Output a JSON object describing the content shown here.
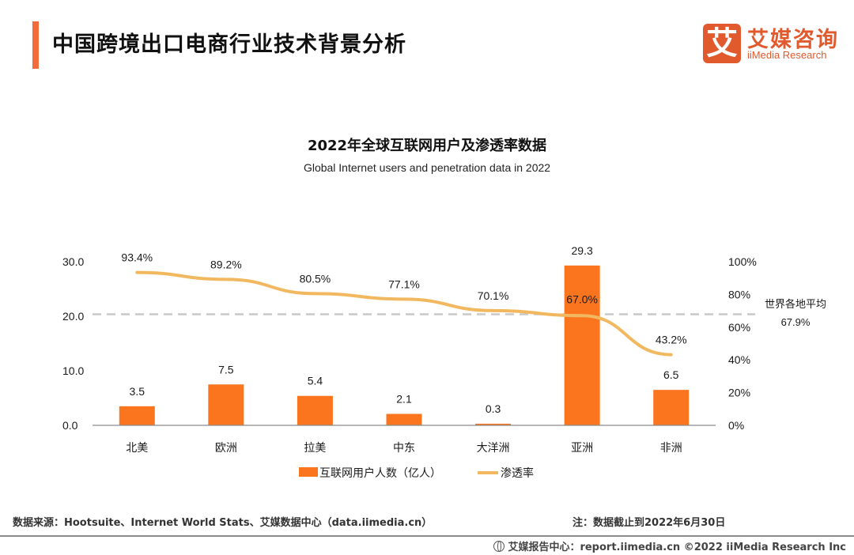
{
  "header": {
    "title": "中国跨境出口电商行业技术背景分析",
    "logo": {
      "mark": "艾",
      "name_cn": "艾媒咨询",
      "name_en": "iiMedia Research"
    }
  },
  "colors": {
    "accent": "#f26b3a",
    "bar": "#fa751e",
    "line": "#f2b860",
    "average_line": "#c8c8c8",
    "axis": "#8c8c8c"
  },
  "chart_data": {
    "type": "bar",
    "title": "2022年全球互联网用户及渗透率数据",
    "subtitle": "Global Internet users and penetration data in 2022",
    "categories": [
      "北美",
      "欧洲",
      "拉美",
      "中东",
      "大洋洲",
      "亚洲",
      "非洲"
    ],
    "series": [
      {
        "name": "互联网用户人数（亿人）",
        "type": "bar",
        "axis": "left",
        "values": [
          3.5,
          7.5,
          5.4,
          2.1,
          0.3,
          29.3,
          6.5
        ],
        "labels": [
          "3.5",
          "7.5",
          "5.4",
          "2.1",
          "0.3",
          "29.3",
          "6.5"
        ]
      },
      {
        "name": "渗透率",
        "type": "line",
        "axis": "right",
        "values": [
          93.4,
          89.2,
          80.5,
          77.1,
          70.1,
          67.0,
          43.2
        ],
        "labels": [
          "93.4%",
          "89.2%",
          "80.5%",
          "77.1%",
          "70.1%",
          "67.0%",
          "43.2%"
        ]
      }
    ],
    "reference_line": {
      "label_line1": "世界各地平均",
      "label_line2": "67.9%",
      "value": 67.9,
      "axis": "right",
      "style": "dashed"
    },
    "left_axis": {
      "ylim": [
        0,
        30
      ],
      "ticks": [
        0,
        10,
        20,
        30
      ],
      "tick_labels": [
        "0.0",
        "10.0",
        "20.0",
        "30.0"
      ]
    },
    "right_axis": {
      "ylim": [
        0,
        100
      ],
      "ticks": [
        0,
        20,
        40,
        60,
        80,
        100
      ],
      "tick_labels": [
        "0%",
        "20%",
        "40%",
        "60%",
        "80%",
        "100%"
      ]
    },
    "xlabel": "",
    "ylabel": "",
    "grid": false,
    "legend_position": "bottom"
  },
  "footer": {
    "source": "数据来源：Hootsuite、Internet World Stats、艾媒数据中心（data.iimedia.cn）",
    "note": "注：数据截止到2022年6月30日",
    "copyright": "艾媒报告中心：report.iimedia.cn   ©2022  iiMedia Research  Inc"
  }
}
